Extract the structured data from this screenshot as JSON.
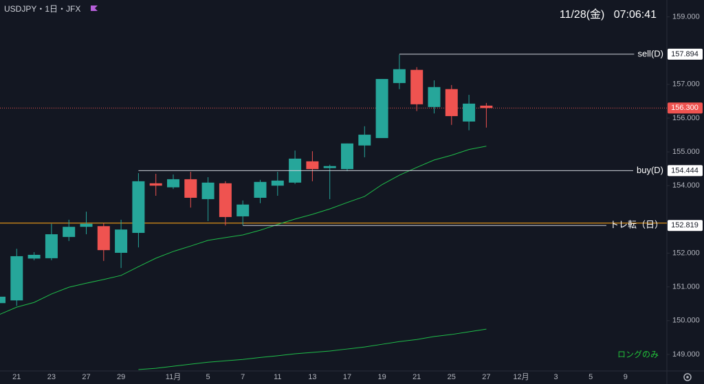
{
  "header": {
    "symbol": "USDJPY・1日・JFX",
    "datetime": "11/28(金)   07:06:41"
  },
  "chart_data": {
    "type": "candlestick",
    "categories": [
      null,
      "21",
      null,
      "23",
      null,
      "27",
      null,
      "29",
      null,
      null,
      "11月",
      null,
      "5",
      null,
      "7",
      null,
      "11",
      null,
      "13",
      null,
      "17",
      null,
      "19",
      null,
      "21",
      null,
      "25",
      null,
      "27",
      null,
      "12月",
      null,
      "3",
      null,
      "5",
      null,
      "9"
    ],
    "open": [
      150.52,
      150.6,
      151.84,
      151.85,
      152.48,
      152.78,
      152.8,
      152.01,
      152.6,
      154.07,
      153.95,
      154.19,
      153.6,
      154.07,
      153.09,
      153.64,
      154.0,
      154.09,
      154.72,
      154.52,
      154.49,
      155.19,
      155.41,
      157.04,
      157.43,
      156.33,
      156.86,
      155.9,
      156.37,
      null,
      null,
      null,
      null,
      null,
      null,
      null,
      null
    ],
    "high": [
      150.75,
      152.13,
      152.03,
      152.87,
      152.99,
      153.23,
      152.89,
      152.99,
      154.37,
      154.35,
      154.33,
      154.41,
      154.25,
      154.13,
      153.56,
      154.17,
      154.41,
      155.04,
      155.02,
      154.62,
      155.25,
      155.76,
      157.16,
      157.88,
      157.51,
      157.12,
      156.98,
      156.69,
      156.45,
      null,
      null,
      null,
      null,
      null,
      null,
      null,
      null
    ],
    "low": [
      150.5,
      150.44,
      151.79,
      151.79,
      152.36,
      152.56,
      151.77,
      151.56,
      152.17,
      153.7,
      153.9,
      153.35,
      152.95,
      152.82,
      152.82,
      153.48,
      153.7,
      154.05,
      154.13,
      153.6,
      154.43,
      154.84,
      155.41,
      156.86,
      156.21,
      156.14,
      155.8,
      155.64,
      155.72,
      null,
      null,
      null,
      null,
      null,
      null,
      null,
      null
    ],
    "close": [
      150.71,
      151.91,
      151.95,
      152.56,
      152.78,
      152.87,
      152.09,
      152.7,
      154.13,
      154.0,
      154.19,
      153.64,
      154.09,
      153.07,
      153.44,
      154.11,
      154.15,
      154.8,
      154.49,
      154.58,
      155.25,
      155.51,
      157.16,
      157.45,
      156.41,
      156.92,
      156.06,
      156.43,
      156.3,
      null,
      null,
      null,
      null,
      null,
      null,
      null,
      null
    ],
    "up_color": "#26a69a",
    "down_color": "#ef5350",
    "ylim": [
      148.51,
      159.5
    ],
    "yticks": [
      {
        "value": 159,
        "label": "159.000"
      },
      {
        "value": 157,
        "label": "157.000"
      },
      {
        "value": 156,
        "label": "156.000"
      },
      {
        "value": 155,
        "label": "155.000"
      },
      {
        "value": 154,
        "label": "154.000"
      },
      {
        "value": 152,
        "label": "152.000"
      },
      {
        "value": 151,
        "label": "151.000"
      },
      {
        "value": 150,
        "label": "150.000"
      },
      {
        "value": 149,
        "label": "149.000"
      }
    ],
    "moving_averages": [
      {
        "color": "#1fbf4a",
        "values": [
          150.18,
          150.4,
          150.54,
          150.79,
          150.99,
          151.11,
          151.22,
          151.34,
          151.6,
          151.85,
          152.05,
          152.21,
          152.38,
          152.46,
          152.54,
          152.68,
          152.85,
          153.01,
          153.15,
          153.31,
          153.5,
          153.68,
          154.03,
          154.31,
          154.54,
          154.76,
          154.9,
          155.07,
          155.17,
          null,
          null,
          null,
          null,
          null,
          null,
          null,
          null
        ]
      },
      {
        "color": "#1fbf4a",
        "values": [
          null,
          null,
          null,
          null,
          null,
          null,
          null,
          null,
          148.55,
          148.59,
          148.65,
          148.71,
          148.77,
          148.81,
          148.85,
          148.91,
          148.96,
          149.02,
          149.06,
          149.1,
          149.16,
          149.22,
          149.3,
          149.38,
          149.44,
          149.53,
          149.59,
          149.67,
          149.75,
          null,
          null,
          null,
          null,
          null,
          null,
          null,
          null
        ]
      }
    ],
    "levels": [
      {
        "label": "sell(D)",
        "value": 157.894,
        "start": 23,
        "color": "#d1d4dc"
      },
      {
        "label": "buy(D)",
        "value": 154.444,
        "start": 8,
        "color": "#d1d4dc"
      },
      {
        "label": "トレ転（日）",
        "value": 152.819,
        "start": 14,
        "color": "#d1d4dc"
      }
    ],
    "reference_line": {
      "value": 152.89,
      "color": "#e0951a"
    },
    "current_price": {
      "value": 156.3,
      "value_label": "156.300",
      "color": "#ef5350"
    },
    "annotation": "ロングのみ",
    "annotation_color": "#22c33a"
  }
}
